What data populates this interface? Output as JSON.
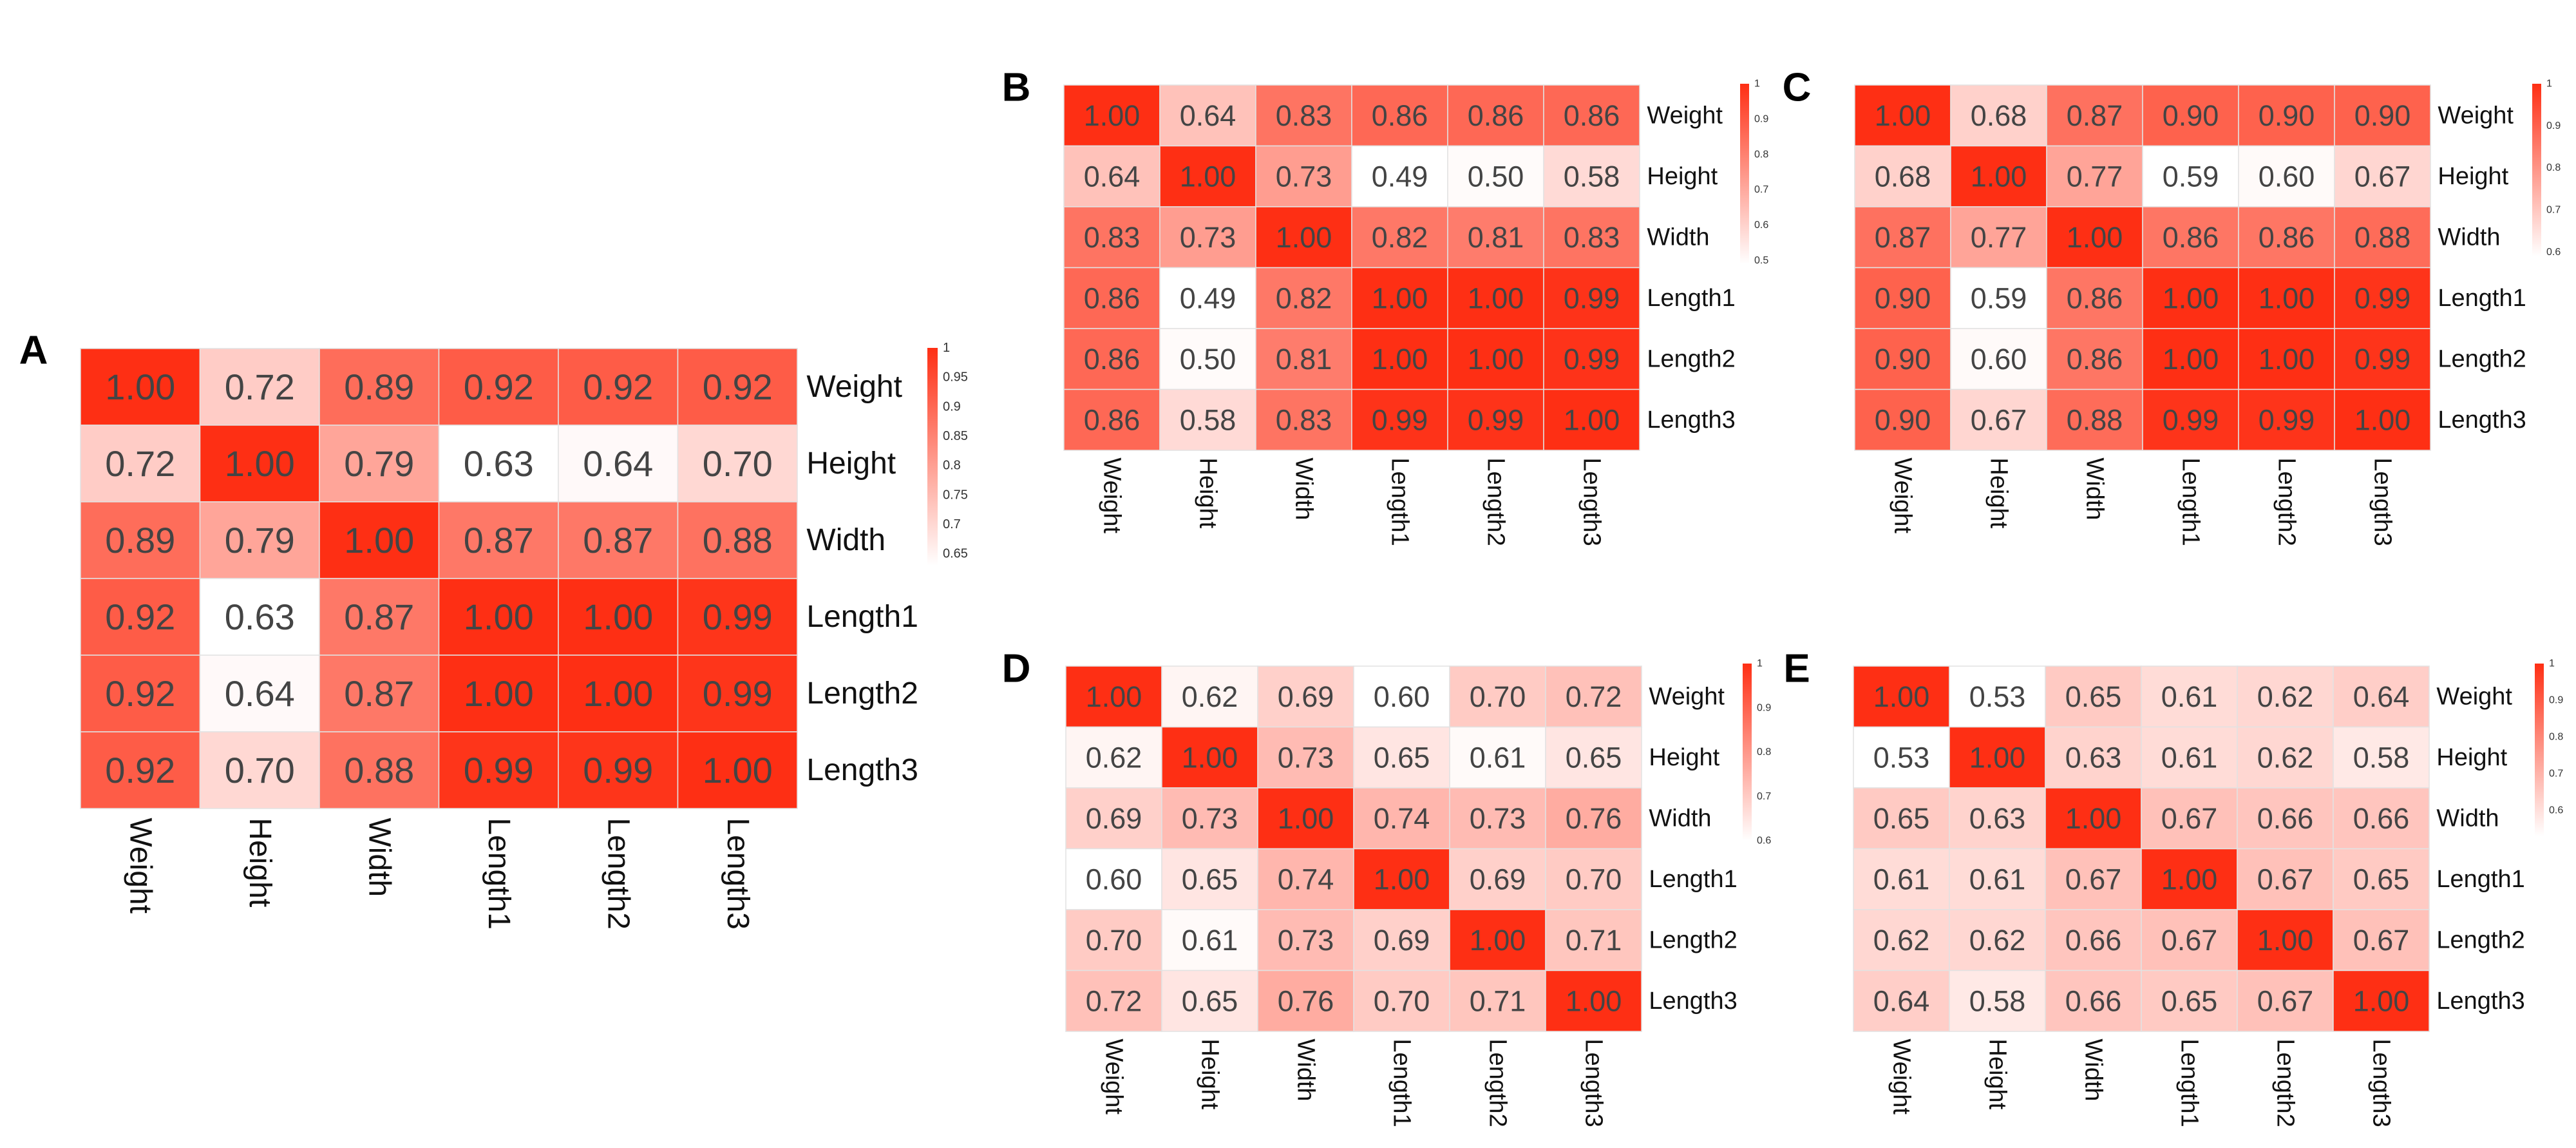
{
  "chart_data": [
    {
      "type": "heatmap",
      "panel": "A",
      "variables": [
        "Weight",
        "Height",
        "Width",
        "Length1",
        "Length2",
        "Length3"
      ],
      "values": [
        [
          "1.00",
          "0.72",
          "0.89",
          "0.92",
          "0.92",
          "0.92"
        ],
        [
          "0.72",
          "1.00",
          "0.79",
          "0.63",
          "0.64",
          "0.70"
        ],
        [
          "0.89",
          "0.79",
          "1.00",
          "0.87",
          "0.87",
          "0.88"
        ],
        [
          "0.92",
          "0.63",
          "0.87",
          "1.00",
          "1.00",
          "0.99"
        ],
        [
          "0.92",
          "0.64",
          "0.87",
          "1.00",
          "1.00",
          "0.99"
        ],
        [
          "0.92",
          "0.70",
          "0.88",
          "0.99",
          "0.99",
          "1.00"
        ]
      ],
      "color_range": [
        0.63,
        1.0
      ],
      "legend_ticks": [
        "1",
        "0.95",
        "0.9",
        "0.85",
        "0.8",
        "0.75",
        "0.7",
        "0.65"
      ]
    },
    {
      "type": "heatmap",
      "panel": "B",
      "variables": [
        "Weight",
        "Height",
        "Width",
        "Length1",
        "Length2",
        "Length3"
      ],
      "values": [
        [
          "1.00",
          "0.64",
          "0.83",
          "0.86",
          "0.86",
          "0.86"
        ],
        [
          "0.64",
          "1.00",
          "0.73",
          "0.49",
          "0.50",
          "0.58"
        ],
        [
          "0.83",
          "0.73",
          "1.00",
          "0.82",
          "0.81",
          "0.83"
        ],
        [
          "0.86",
          "0.49",
          "0.82",
          "1.00",
          "1.00",
          "0.99"
        ],
        [
          "0.86",
          "0.50",
          "0.81",
          "1.00",
          "1.00",
          "0.99"
        ],
        [
          "0.86",
          "0.58",
          "0.83",
          "0.99",
          "0.99",
          "1.00"
        ]
      ],
      "color_range": [
        0.49,
        1.0
      ],
      "legend_ticks": [
        "1",
        "0.9",
        "0.8",
        "0.7",
        "0.6",
        "0.5"
      ]
    },
    {
      "type": "heatmap",
      "panel": "C",
      "variables": [
        "Weight",
        "Height",
        "Width",
        "Length1",
        "Length2",
        "Length3"
      ],
      "values": [
        [
          "1.00",
          "0.68",
          "0.87",
          "0.90",
          "0.90",
          "0.90"
        ],
        [
          "0.68",
          "1.00",
          "0.77",
          "0.59",
          "0.60",
          "0.67"
        ],
        [
          "0.87",
          "0.77",
          "1.00",
          "0.86",
          "0.86",
          "0.88"
        ],
        [
          "0.90",
          "0.59",
          "0.86",
          "1.00",
          "1.00",
          "0.99"
        ],
        [
          "0.90",
          "0.60",
          "0.86",
          "1.00",
          "1.00",
          "0.99"
        ],
        [
          "0.90",
          "0.67",
          "0.88",
          "0.99",
          "0.99",
          "1.00"
        ]
      ],
      "color_range": [
        0.59,
        1.0
      ],
      "legend_ticks": [
        "1",
        "0.9",
        "0.8",
        "0.7",
        "0.6"
      ]
    },
    {
      "type": "heatmap",
      "panel": "D",
      "variables": [
        "Weight",
        "Height",
        "Width",
        "Length1",
        "Length2",
        "Length3"
      ],
      "values": [
        [
          "1.00",
          "0.62",
          "0.69",
          "0.60",
          "0.70",
          "0.72"
        ],
        [
          "0.62",
          "1.00",
          "0.73",
          "0.65",
          "0.61",
          "0.65"
        ],
        [
          "0.69",
          "0.73",
          "1.00",
          "0.74",
          "0.73",
          "0.76"
        ],
        [
          "0.60",
          "0.65",
          "0.74",
          "1.00",
          "0.69",
          "0.70"
        ],
        [
          "0.70",
          "0.61",
          "0.73",
          "0.69",
          "1.00",
          "0.71"
        ],
        [
          "0.72",
          "0.65",
          "0.76",
          "0.70",
          "0.71",
          "1.00"
        ]
      ],
      "color_range": [
        0.6,
        1.0
      ],
      "legend_ticks": [
        "1",
        "0.9",
        "0.8",
        "0.7",
        "0.6"
      ]
    },
    {
      "type": "heatmap",
      "panel": "E",
      "variables": [
        "Weight",
        "Height",
        "Width",
        "Length1",
        "Length2",
        "Length3"
      ],
      "values": [
        [
          "1.00",
          "0.53",
          "0.65",
          "0.61",
          "0.62",
          "0.64"
        ],
        [
          "0.53",
          "1.00",
          "0.63",
          "0.61",
          "0.62",
          "0.58"
        ],
        [
          "0.65",
          "0.63",
          "1.00",
          "0.67",
          "0.66",
          "0.66"
        ],
        [
          "0.61",
          "0.61",
          "0.67",
          "1.00",
          "0.67",
          "0.65"
        ],
        [
          "0.62",
          "0.62",
          "0.66",
          "0.67",
          "1.00",
          "0.67"
        ],
        [
          "0.64",
          "0.58",
          "0.66",
          "0.65",
          "0.67",
          "1.00"
        ]
      ],
      "color_range": [
        0.53,
        1.0
      ],
      "legend_ticks": [
        "1",
        "0.9",
        "0.8",
        "0.7",
        "0.6"
      ]
    }
  ],
  "colors": {
    "high": "#fe2f14",
    "low": "#ffffff",
    "grid": "#e2e2e2",
    "text": "#444444"
  }
}
